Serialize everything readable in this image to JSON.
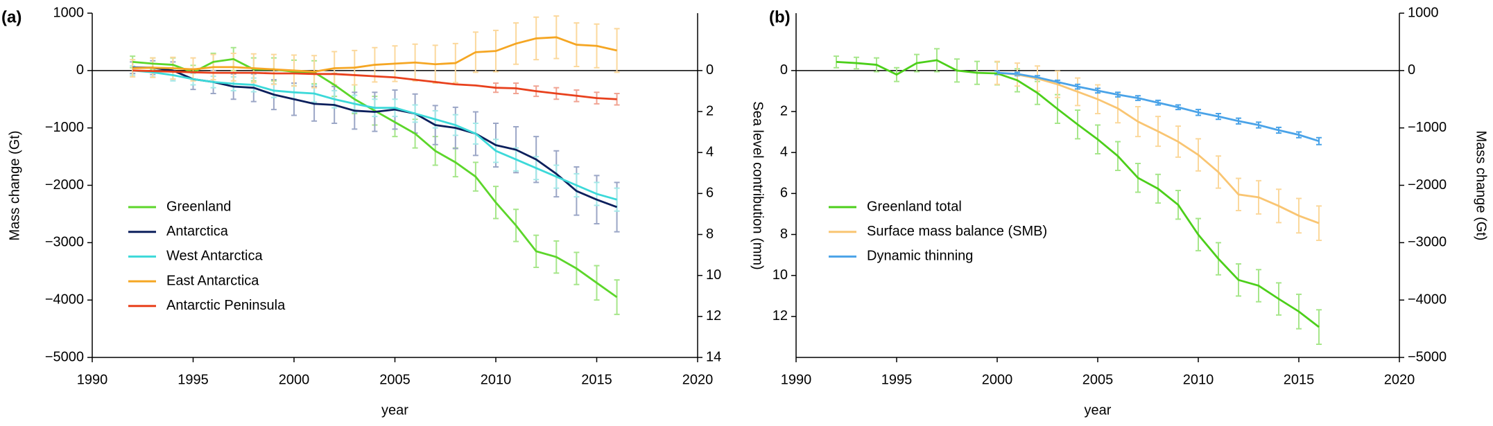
{
  "chart_data": [
    {
      "type": "line",
      "title": "(a)",
      "xlabel": "year",
      "ylabel": "Mass change (Gt)",
      "y2label": "Sea level contribution (mm)",
      "x": [
        1992,
        1993,
        1994,
        1995,
        1996,
        1997,
        1998,
        1999,
        2000,
        2001,
        2002,
        2003,
        2004,
        2005,
        2006,
        2007,
        2008,
        2009,
        2010,
        2011,
        2012,
        2013,
        2014,
        2015,
        2016
      ],
      "xlim": [
        1990,
        2020
      ],
      "xticks": [
        1990,
        1995,
        2000,
        2005,
        2010,
        2015,
        2020
      ],
      "ylim": [
        -5000,
        1000
      ],
      "yticks": [
        {
          "value": 1000,
          "label": "1000"
        },
        0,
        {
          "value": -1000,
          "label": "−1000"
        },
        {
          "value": -2000,
          "label": "−2000"
        },
        {
          "value": -3000,
          "label": "−3000"
        },
        {
          "value": -4000,
          "label": "−4000"
        },
        {
          "value": -5000,
          "label": "−5000"
        }
      ],
      "y2lim": [
        14,
        -2.8
      ],
      "y2ticks": [
        0,
        2,
        4,
        6,
        8,
        10,
        12,
        14
      ],
      "series": [
        {
          "name": "Greenland",
          "color": "#5cd62a",
          "error_color": "#a6e68a",
          "values": [
            150,
            120,
            100,
            -30,
            150,
            200,
            20,
            20,
            -20,
            -30,
            -250,
            -500,
            -700,
            -900,
            -1100,
            -1400,
            -1600,
            -1850,
            -2300,
            -2700,
            -3150,
            -3250,
            -3450,
            -3700,
            -3950
          ],
          "errors": [
            100,
            100,
            120,
            120,
            150,
            200,
            200,
            200,
            200,
            200,
            200,
            250,
            250,
            250,
            250,
            250,
            250,
            250,
            280,
            280,
            280,
            280,
            280,
            300,
            300
          ]
        },
        {
          "name": "Antarctica",
          "color": "#0b1f5c",
          "error_color": "#9ba6c6",
          "values": [
            50,
            50,
            0,
            -150,
            -200,
            -280,
            -300,
            -420,
            -500,
            -580,
            -600,
            -700,
            -720,
            -680,
            -750,
            -950,
            -1000,
            -1100,
            -1300,
            -1380,
            -1550,
            -1800,
            -2100,
            -2250,
            -2380
          ],
          "errors": [
            100,
            120,
            150,
            180,
            200,
            220,
            240,
            260,
            280,
            300,
            320,
            320,
            340,
            340,
            340,
            340,
            360,
            380,
            380,
            400,
            400,
            400,
            420,
            420,
            430
          ]
        },
        {
          "name": "West Antarctica",
          "color": "#3cd9d9",
          "error_color": "#a3e8e8",
          "values": [
            0,
            -30,
            -80,
            -150,
            -200,
            -230,
            -250,
            -350,
            -380,
            -400,
            -500,
            -580,
            -650,
            -650,
            -750,
            -850,
            -950,
            -1100,
            -1400,
            -1550,
            -1700,
            -1850,
            -2000,
            -2150,
            -2250
          ],
          "errors": [
            80,
            80,
            100,
            100,
            100,
            120,
            120,
            120,
            120,
            150,
            150,
            150,
            150,
            150,
            150,
            150,
            180,
            180,
            200,
            200,
            200,
            200,
            200,
            200,
            200
          ]
        },
        {
          "name": "East Antarctica",
          "color": "#f5a623",
          "error_color": "#fbd89c",
          "values": [
            40,
            50,
            40,
            20,
            60,
            60,
            40,
            20,
            0,
            -20,
            40,
            50,
            100,
            120,
            140,
            110,
            130,
            320,
            340,
            470,
            560,
            580,
            450,
            430,
            350
          ],
          "errors": [
            150,
            170,
            190,
            200,
            220,
            240,
            250,
            260,
            270,
            280,
            290,
            300,
            300,
            310,
            320,
            330,
            340,
            350,
            360,
            360,
            370,
            370,
            380,
            380,
            380
          ]
        },
        {
          "name": "Antarctic Peninsula",
          "color": "#e8401c",
          "error_color": "#f1a392",
          "values": [
            0,
            -10,
            -20,
            -30,
            -40,
            -40,
            -40,
            -50,
            -50,
            -60,
            -60,
            -80,
            -100,
            -120,
            -160,
            -200,
            -240,
            -260,
            -300,
            -310,
            -360,
            -400,
            -440,
            -480,
            -500
          ],
          "errors": [
            0,
            0,
            0,
            0,
            0,
            0,
            0,
            0,
            0,
            0,
            0,
            0,
            0,
            0,
            0,
            0,
            0,
            0,
            80,
            90,
            90,
            100,
            100,
            100,
            100
          ]
        }
      ]
    },
    {
      "type": "line",
      "title": "(b)",
      "xlabel": "year",
      "y2label": "Mass change (Gt)",
      "x": [
        1992,
        1993,
        1994,
        1995,
        1996,
        1997,
        1998,
        1999,
        2000,
        2001,
        2002,
        2003,
        2004,
        2005,
        2006,
        2007,
        2008,
        2009,
        2010,
        2011,
        2012,
        2013,
        2014,
        2015,
        2016
      ],
      "xlim": [
        1990,
        2020
      ],
      "xticks": [
        1990,
        1995,
        2000,
        2005,
        2010,
        2015,
        2020
      ],
      "ylim": [
        14,
        -2.8
      ],
      "yticks": [
        0,
        2,
        4,
        6,
        8,
        10,
        12
      ],
      "y2lim": [
        -5000,
        1000
      ],
      "y2ticks": [
        {
          "value": 1000,
          "label": "1000"
        },
        0,
        {
          "value": -1000,
          "label": "−1000"
        },
        {
          "value": -2000,
          "label": "−2000"
        },
        {
          "value": -3000,
          "label": "−3000"
        },
        {
          "value": -4000,
          "label": "−4000"
        },
        {
          "value": -5000,
          "label": "−5000"
        }
      ],
      "series": [
        {
          "name": "Greenland total",
          "color": "#4ccf1a",
          "error_color": "#a6e68a",
          "axis": "y2",
          "values": [
            150,
            130,
            100,
            -70,
            130,
            180,
            0,
            -40,
            -50,
            -170,
            -390,
            -670,
            -940,
            -1200,
            -1490,
            -1870,
            -2060,
            -2340,
            -2860,
            -3280,
            -3650,
            -3750,
            -3980,
            -4200,
            -4470
          ],
          "errors": [
            100,
            100,
            120,
            120,
            150,
            200,
            200,
            200,
            200,
            200,
            200,
            250,
            250,
            250,
            250,
            250,
            250,
            250,
            280,
            280,
            280,
            280,
            280,
            300,
            300
          ]
        },
        {
          "name": "Surface mass balance (SMB)",
          "color": "#f9c572",
          "error_color": "#fbd89c",
          "axis": "y2",
          "values": [
            null,
            null,
            null,
            null,
            null,
            null,
            null,
            null,
            -40,
            -70,
            -140,
            -240,
            -370,
            -500,
            -660,
            -890,
            -1060,
            -1240,
            -1470,
            -1770,
            -2160,
            -2210,
            -2360,
            -2530,
            -2660
          ],
          "errors": [
            null,
            null,
            null,
            null,
            null,
            null,
            null,
            null,
            200,
            200,
            220,
            230,
            240,
            250,
            250,
            260,
            260,
            270,
            280,
            280,
            280,
            290,
            290,
            300,
            300
          ]
        },
        {
          "name": "Dynamic thinning",
          "color": "#4aa3e8",
          "error_color": "#4aa3e8",
          "axis": "y2",
          "values": [
            null,
            null,
            null,
            null,
            null,
            null,
            null,
            null,
            -40,
            -60,
            -120,
            -200,
            -280,
            -350,
            -420,
            -480,
            -560,
            -640,
            -730,
            -800,
            -880,
            -950,
            -1040,
            -1120,
            -1230
          ],
          "errors": [
            null,
            null,
            null,
            null,
            null,
            null,
            null,
            null,
            30,
            30,
            30,
            30,
            40,
            40,
            40,
            40,
            40,
            40,
            50,
            50,
            50,
            50,
            50,
            50,
            60
          ]
        }
      ]
    }
  ]
}
